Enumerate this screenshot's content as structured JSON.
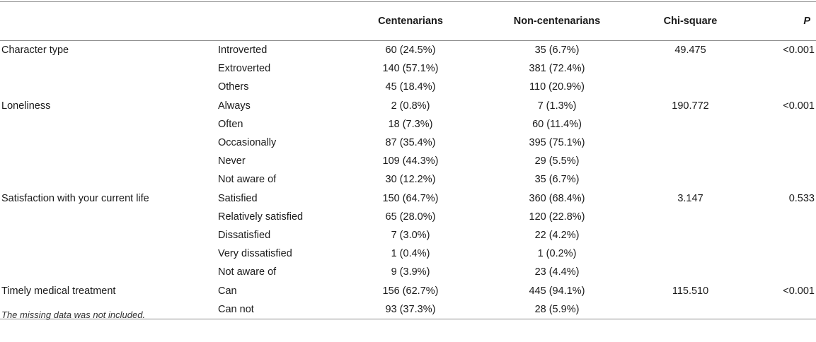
{
  "table": {
    "headers": [
      "",
      "",
      "Centenarians",
      "Non-centenarians",
      "Chi-square",
      "P"
    ],
    "rows": [
      {
        "variable": "Character type",
        "category": "Introverted",
        "centenarians": "60 (24.5%)",
        "non_centenarians": "35 (6.7%)",
        "chi_square": "49.475",
        "p": "<0.001"
      },
      {
        "variable": "",
        "category": "Extroverted",
        "centenarians": "140 (57.1%)",
        "non_centenarians": "381 (72.4%)",
        "chi_square": "",
        "p": ""
      },
      {
        "variable": "",
        "category": "Others",
        "centenarians": "45 (18.4%)",
        "non_centenarians": "110 (20.9%)",
        "chi_square": "",
        "p": ""
      },
      {
        "variable": "Loneliness",
        "category": "Always",
        "centenarians": "2 (0.8%)",
        "non_centenarians": "7 (1.3%)",
        "chi_square": "190.772",
        "p": "<0.001"
      },
      {
        "variable": "",
        "category": "Often",
        "centenarians": "18 (7.3%)",
        "non_centenarians": "60 (11.4%)",
        "chi_square": "",
        "p": ""
      },
      {
        "variable": "",
        "category": "Occasionally",
        "centenarians": "87 (35.4%)",
        "non_centenarians": "395 (75.1%)",
        "chi_square": "",
        "p": ""
      },
      {
        "variable": "",
        "category": "Never",
        "centenarians": "109 (44.3%)",
        "non_centenarians": "29 (5.5%)",
        "chi_square": "",
        "p": ""
      },
      {
        "variable": "",
        "category": "Not aware of",
        "centenarians": "30 (12.2%)",
        "non_centenarians": "35 (6.7%)",
        "chi_square": "",
        "p": ""
      },
      {
        "variable": "Satisfaction with your current life",
        "category": "Satisfied",
        "centenarians": "150 (64.7%)",
        "non_centenarians": "360 (68.4%)",
        "chi_square": "3.147",
        "p": "0.533"
      },
      {
        "variable": "",
        "category": "Relatively satisfied",
        "centenarians": "65 (28.0%)",
        "non_centenarians": "120 (22.8%)",
        "chi_square": "",
        "p": ""
      },
      {
        "variable": "",
        "category": "Dissatisfied",
        "centenarians": "7 (3.0%)",
        "non_centenarians": "22 (4.2%)",
        "chi_square": "",
        "p": ""
      },
      {
        "variable": "",
        "category": "Very dissatisfied",
        "centenarians": "1 (0.4%)",
        "non_centenarians": "1 (0.2%)",
        "chi_square": "",
        "p": ""
      },
      {
        "variable": "",
        "category": "Not aware of",
        "centenarians": "9 (3.9%)",
        "non_centenarians": "23 (4.4%)",
        "chi_square": "",
        "p": ""
      },
      {
        "variable": "Timely medical treatment",
        "category": "Can",
        "centenarians": "156 (62.7%)",
        "non_centenarians": "445 (94.1%)",
        "chi_square": "115.510",
        "p": "<0.001"
      },
      {
        "variable": "",
        "category": "Can not",
        "centenarians": "93 (37.3%)",
        "non_centenarians": "28 (5.9%)",
        "chi_square": "",
        "p": ""
      }
    ]
  },
  "footnote": "The missing data was not included."
}
